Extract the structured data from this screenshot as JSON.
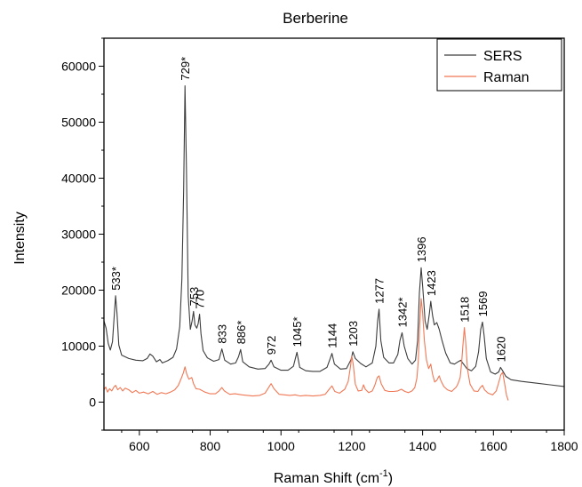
{
  "chart_data": {
    "type": "line",
    "title": "Berberine",
    "xlabel": "Raman Shift (cm",
    "xlabel_sup": "-1",
    "xlabel_tail": ")",
    "ylabel": "Intensity",
    "xlim": [
      500,
      1800
    ],
    "ylim": [
      -5000,
      65000
    ],
    "xticks": [
      600,
      800,
      1000,
      1200,
      1400,
      1600,
      1800
    ],
    "yticks": [
      0,
      10000,
      20000,
      30000,
      40000,
      50000,
      60000
    ],
    "grid": false,
    "legend": "top-right",
    "series": [
      {
        "name": "SERS",
        "color": "#3c3c3c",
        "points": [
          [
            500,
            14500
          ],
          [
            506,
            13200
          ],
          [
            512,
            10500
          ],
          [
            518,
            9300
          ],
          [
            524,
            10800
          ],
          [
            530,
            16500
          ],
          [
            533,
            19000
          ],
          [
            537,
            15800
          ],
          [
            542,
            10200
          ],
          [
            550,
            8400
          ],
          [
            570,
            7800
          ],
          [
            590,
            7500
          ],
          [
            610,
            7400
          ],
          [
            622,
            7800
          ],
          [
            630,
            8600
          ],
          [
            638,
            8200
          ],
          [
            648,
            7200
          ],
          [
            658,
            7600
          ],
          [
            665,
            7000
          ],
          [
            680,
            7400
          ],
          [
            695,
            8000
          ],
          [
            705,
            9500
          ],
          [
            714,
            13500
          ],
          [
            720,
            22000
          ],
          [
            725,
            38000
          ],
          [
            729,
            56500
          ],
          [
            733,
            42000
          ],
          [
            738,
            19000
          ],
          [
            744,
            13000
          ],
          [
            749,
            14500
          ],
          [
            753,
            16200
          ],
          [
            757,
            13800
          ],
          [
            762,
            13200
          ],
          [
            766,
            14000
          ],
          [
            770,
            15700
          ],
          [
            774,
            12200
          ],
          [
            780,
            9200
          ],
          [
            792,
            7900
          ],
          [
            810,
            7300
          ],
          [
            825,
            7600
          ],
          [
            833,
            9500
          ],
          [
            841,
            7500
          ],
          [
            858,
            6800
          ],
          [
            872,
            7000
          ],
          [
            880,
            8100
          ],
          [
            886,
            9400
          ],
          [
            892,
            7200
          ],
          [
            910,
            6300
          ],
          [
            935,
            5900
          ],
          [
            955,
            6000
          ],
          [
            966,
            6800
          ],
          [
            972,
            7500
          ],
          [
            980,
            6300
          ],
          [
            1000,
            5700
          ],
          [
            1020,
            5700
          ],
          [
            1035,
            6400
          ],
          [
            1045,
            8900
          ],
          [
            1053,
            6200
          ],
          [
            1070,
            5600
          ],
          [
            1090,
            5500
          ],
          [
            1110,
            5500
          ],
          [
            1130,
            6200
          ],
          [
            1138,
            7600
          ],
          [
            1144,
            8700
          ],
          [
            1151,
            6800
          ],
          [
            1168,
            5900
          ],
          [
            1185,
            6000
          ],
          [
            1198,
            7600
          ],
          [
            1203,
            9000
          ],
          [
            1210,
            7800
          ],
          [
            1225,
            6900
          ],
          [
            1240,
            6300
          ],
          [
            1258,
            7000
          ],
          [
            1268,
            10000
          ],
          [
            1273,
            14500
          ],
          [
            1277,
            16600
          ],
          [
            1282,
            11000
          ],
          [
            1290,
            8000
          ],
          [
            1305,
            7000
          ],
          [
            1318,
            7000
          ],
          [
            1330,
            8500
          ],
          [
            1336,
            11000
          ],
          [
            1342,
            12400
          ],
          [
            1348,
            10000
          ],
          [
            1358,
            7800
          ],
          [
            1370,
            6800
          ],
          [
            1380,
            7500
          ],
          [
            1386,
            11000
          ],
          [
            1391,
            19500
          ],
          [
            1396,
            24000
          ],
          [
            1401,
            20000
          ],
          [
            1407,
            14500
          ],
          [
            1413,
            13000
          ],
          [
            1419,
            15800
          ],
          [
            1423,
            18000
          ],
          [
            1428,
            15500
          ],
          [
            1433,
            13800
          ],
          [
            1440,
            14200
          ],
          [
            1447,
            13000
          ],
          [
            1455,
            11000
          ],
          [
            1465,
            8800
          ],
          [
            1478,
            7000
          ],
          [
            1490,
            6800
          ],
          [
            1500,
            7200
          ],
          [
            1508,
            7500
          ],
          [
            1513,
            7000
          ],
          [
            1518,
            6600
          ],
          [
            1525,
            6000
          ],
          [
            1538,
            5600
          ],
          [
            1550,
            6400
          ],
          [
            1558,
            9000
          ],
          [
            1564,
            13000
          ],
          [
            1569,
            14300
          ],
          [
            1574,
            11800
          ],
          [
            1580,
            7800
          ],
          [
            1592,
            5400
          ],
          [
            1605,
            5000
          ],
          [
            1615,
            5400
          ],
          [
            1620,
            6200
          ],
          [
            1626,
            5600
          ],
          [
            1635,
            4600
          ],
          [
            1650,
            4000
          ],
          [
            1680,
            3700
          ],
          [
            1720,
            3400
          ],
          [
            1760,
            3100
          ],
          [
            1800,
            2800
          ]
        ]
      },
      {
        "name": "Raman",
        "color": "#f07855",
        "points": [
          [
            500,
            2200
          ],
          [
            505,
            2700
          ],
          [
            510,
            1800
          ],
          [
            516,
            2400
          ],
          [
            522,
            2000
          ],
          [
            528,
            2700
          ],
          [
            533,
            3000
          ],
          [
            539,
            2200
          ],
          [
            546,
            2600
          ],
          [
            553,
            2000
          ],
          [
            560,
            2500
          ],
          [
            570,
            2200
          ],
          [
            580,
            1700
          ],
          [
            590,
            2100
          ],
          [
            600,
            1600
          ],
          [
            612,
            1800
          ],
          [
            625,
            1500
          ],
          [
            638,
            1900
          ],
          [
            650,
            1400
          ],
          [
            662,
            1700
          ],
          [
            675,
            1500
          ],
          [
            688,
            1800
          ],
          [
            700,
            2200
          ],
          [
            710,
            3000
          ],
          [
            718,
            4200
          ],
          [
            724,
            5200
          ],
          [
            729,
            6300
          ],
          [
            734,
            5000
          ],
          [
            740,
            4100
          ],
          [
            748,
            4400
          ],
          [
            753,
            3300
          ],
          [
            760,
            2400
          ],
          [
            770,
            2300
          ],
          [
            785,
            1800
          ],
          [
            800,
            1500
          ],
          [
            815,
            1500
          ],
          [
            825,
            2000
          ],
          [
            833,
            2600
          ],
          [
            840,
            2000
          ],
          [
            855,
            1400
          ],
          [
            870,
            1500
          ],
          [
            880,
            1400
          ],
          [
            890,
            1300
          ],
          [
            905,
            1200
          ],
          [
            920,
            1100
          ],
          [
            940,
            1200
          ],
          [
            955,
            1600
          ],
          [
            965,
            2600
          ],
          [
            972,
            3300
          ],
          [
            980,
            2400
          ],
          [
            995,
            1400
          ],
          [
            1010,
            1300
          ],
          [
            1025,
            1200
          ],
          [
            1040,
            1300
          ],
          [
            1055,
            1100
          ],
          [
            1070,
            1200
          ],
          [
            1090,
            1100
          ],
          [
            1110,
            1200
          ],
          [
            1125,
            1400
          ],
          [
            1135,
            2200
          ],
          [
            1144,
            2900
          ],
          [
            1152,
            1900
          ],
          [
            1165,
            1600
          ],
          [
            1180,
            2300
          ],
          [
            1190,
            3700
          ],
          [
            1196,
            6200
          ],
          [
            1200,
            8200
          ],
          [
            1204,
            6800
          ],
          [
            1210,
            3200
          ],
          [
            1218,
            2000
          ],
          [
            1228,
            2100
          ],
          [
            1233,
            3100
          ],
          [
            1238,
            2300
          ],
          [
            1248,
            1700
          ],
          [
            1258,
            2000
          ],
          [
            1265,
            3000
          ],
          [
            1272,
            4400
          ],
          [
            1277,
            4700
          ],
          [
            1283,
            3300
          ],
          [
            1293,
            2100
          ],
          [
            1305,
            1900
          ],
          [
            1318,
            1900
          ],
          [
            1330,
            2000
          ],
          [
            1340,
            2300
          ],
          [
            1350,
            1900
          ],
          [
            1360,
            1700
          ],
          [
            1370,
            2000
          ],
          [
            1378,
            2600
          ],
          [
            1384,
            4300
          ],
          [
            1388,
            7500
          ],
          [
            1392,
            14000
          ],
          [
            1396,
            18500
          ],
          [
            1400,
            16000
          ],
          [
            1405,
            11000
          ],
          [
            1411,
            7500
          ],
          [
            1417,
            6000
          ],
          [
            1423,
            6800
          ],
          [
            1428,
            5000
          ],
          [
            1434,
            3600
          ],
          [
            1440,
            3900
          ],
          [
            1447,
            4700
          ],
          [
            1452,
            3800
          ],
          [
            1460,
            2800
          ],
          [
            1470,
            2200
          ],
          [
            1482,
            1900
          ],
          [
            1495,
            2700
          ],
          [
            1500,
            3300
          ],
          [
            1506,
            4400
          ],
          [
            1510,
            6800
          ],
          [
            1514,
            10200
          ],
          [
            1518,
            13300
          ],
          [
            1522,
            10500
          ],
          [
            1527,
            5800
          ],
          [
            1534,
            3200
          ],
          [
            1545,
            2000
          ],
          [
            1556,
            1900
          ],
          [
            1563,
            2600
          ],
          [
            1569,
            3000
          ],
          [
            1575,
            2200
          ],
          [
            1585,
            1600
          ],
          [
            1598,
            1300
          ],
          [
            1608,
            2000
          ],
          [
            1615,
            3500
          ],
          [
            1621,
            4900
          ],
          [
            1626,
            5300
          ],
          [
            1631,
            3500
          ],
          [
            1637,
            1200
          ],
          [
            1642,
            300
          ]
        ]
      }
    ],
    "annotations": [
      {
        "text": "533*",
        "x": 533,
        "y": 19000
      },
      {
        "text": "729*",
        "x": 729,
        "y": 56500
      },
      {
        "text": "753",
        "x": 753,
        "y": 16200
      },
      {
        "text": "770",
        "x": 770,
        "y": 15700
      },
      {
        "text": "833",
        "x": 833,
        "y": 9500
      },
      {
        "text": "886*",
        "x": 886,
        "y": 9400
      },
      {
        "text": "972",
        "x": 972,
        "y": 7500
      },
      {
        "text": "1045*",
        "x": 1045,
        "y": 8900
      },
      {
        "text": "1144",
        "x": 1144,
        "y": 8700
      },
      {
        "text": "1203",
        "x": 1203,
        "y": 9000
      },
      {
        "text": "1277",
        "x": 1277,
        "y": 16600
      },
      {
        "text": "1342*",
        "x": 1342,
        "y": 12400
      },
      {
        "text": "1396",
        "x": 1396,
        "y": 24000
      },
      {
        "text": "1423",
        "x": 1423,
        "y": 18000
      },
      {
        "text": "1518",
        "x": 1518,
        "y": 13300
      },
      {
        "text": "1569",
        "x": 1569,
        "y": 14300
      },
      {
        "text": "1620",
        "x": 1620,
        "y": 6200
      }
    ]
  }
}
